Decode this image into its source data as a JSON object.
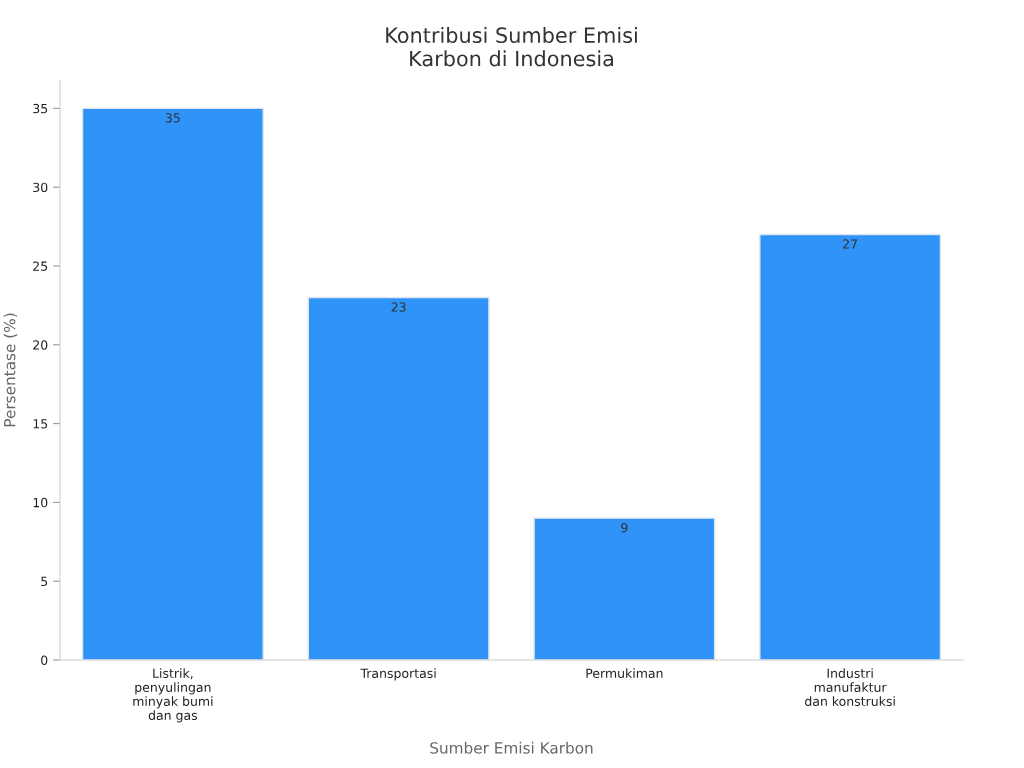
{
  "chart_data": {
    "type": "bar",
    "title": "Kontribusi Sumber Emisi\nKarbon di Indonesia",
    "xlabel": "Sumber Emisi Karbon",
    "ylabel": "Persentase (%)",
    "categories": [
      "Listrik,\npenyulingan\nminyak bumi\ndan gas",
      "Transportasi",
      "Permukiman",
      "Industri\nmanufaktur\ndan konstruksi"
    ],
    "values": [
      35,
      23,
      9,
      27
    ],
    "color": "#2f93f8",
    "ylim": [
      0,
      36.8
    ],
    "yticks": [
      0,
      5,
      10,
      15,
      20,
      25,
      30,
      35
    ],
    "grid": false,
    "data_labels": true
  }
}
